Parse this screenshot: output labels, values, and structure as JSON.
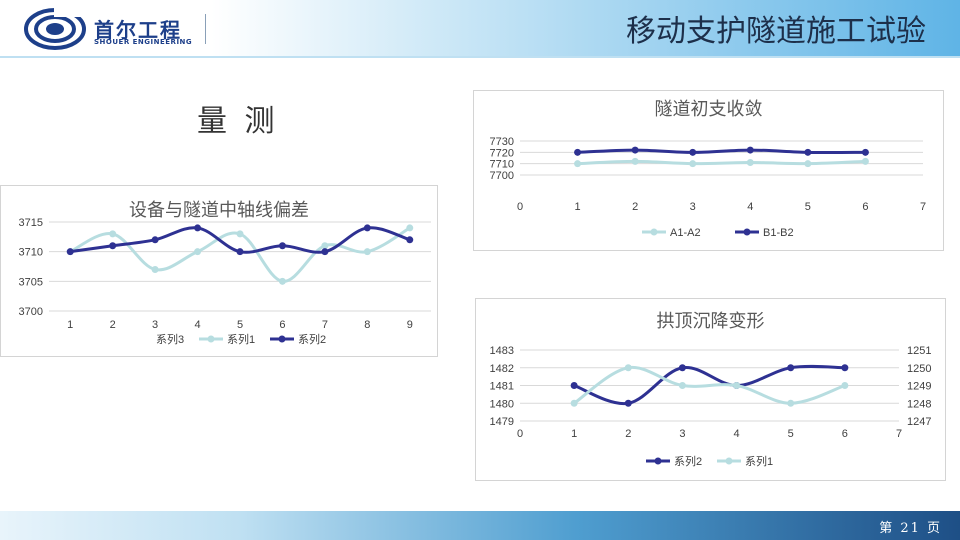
{
  "header": {
    "company_name": "首尔工程",
    "company_sub": "SHOUER ENGINEERING",
    "title": "移动支护隧道施工试验"
  },
  "section_title": "量 测",
  "footer": {
    "page_label": "第 21 页"
  },
  "colors": {
    "light_series": "#b7dde0",
    "dark_series": "#2e3192",
    "grid": "#d9d9d9",
    "axis_text": "#404040"
  },
  "chart_data": [
    {
      "id": "axis-deviation",
      "type": "line",
      "title": "设备与隧道中轴线偏差",
      "categories": [
        "1",
        "2",
        "3",
        "4",
        "5",
        "6",
        "7",
        "8",
        "9"
      ],
      "ylim": [
        3700,
        3715
      ],
      "yticks": [
        3700,
        3705,
        3710,
        3715
      ],
      "grid": true,
      "legend_position": "bottom",
      "legend": [
        "系列3",
        "系列1",
        "系列2"
      ],
      "series": [
        {
          "name": "系列1",
          "color": "#b7dde0",
          "values": [
            3710,
            3713,
            3707,
            3710,
            3713,
            3705,
            3711,
            3710,
            3714
          ]
        },
        {
          "name": "系列2",
          "color": "#2e3192",
          "values": [
            3710,
            3711,
            3712,
            3714,
            3710,
            3711,
            3710,
            3714,
            3712
          ]
        }
      ]
    },
    {
      "id": "convergence",
      "type": "scatter-line",
      "title": "隧道初支收敛",
      "xlim": [
        0,
        7
      ],
      "xticks": [
        0,
        1,
        2,
        3,
        4,
        5,
        6,
        7
      ],
      "ylim": [
        7700,
        7730
      ],
      "yticks": [
        7700,
        7710,
        7720,
        7730
      ],
      "grid": true,
      "legend_position": "bottom",
      "series": [
        {
          "name": "A1-A2",
          "color": "#b7dde0",
          "x": [
            1,
            2,
            3,
            4,
            5,
            6
          ],
          "y": [
            7710,
            7712,
            7710,
            7711,
            7710,
            7712
          ]
        },
        {
          "name": "B1-B2",
          "color": "#2e3192",
          "x": [
            1,
            2,
            3,
            4,
            5,
            6
          ],
          "y": [
            7720,
            7722,
            7720,
            7722,
            7720,
            7720
          ]
        }
      ]
    },
    {
      "id": "settlement",
      "type": "scatter-line",
      "title": "拱顶沉降变形",
      "xlim": [
        0,
        7
      ],
      "xticks": [
        0,
        1,
        2,
        3,
        4,
        5,
        6,
        7
      ],
      "ylim": [
        1479,
        1483
      ],
      "yticks": [
        1479,
        1480,
        1481,
        1482,
        1483
      ],
      "y2lim": [
        1247,
        1251
      ],
      "y2ticks": [
        1247,
        1248,
        1249,
        1250,
        1251
      ],
      "grid": true,
      "legend_position": "bottom",
      "series": [
        {
          "name": "系列2",
          "color": "#2e3192",
          "axis": "left",
          "x": [
            1,
            2,
            3,
            4,
            5,
            6
          ],
          "y": [
            1481,
            1480,
            1482,
            1481,
            1482,
            1482
          ]
        },
        {
          "name": "系列1",
          "color": "#b7dde0",
          "axis": "right",
          "x": [
            1,
            2,
            3,
            4,
            5,
            6
          ],
          "y": [
            1248,
            1250,
            1249,
            1249,
            1248,
            1249
          ]
        }
      ]
    }
  ]
}
